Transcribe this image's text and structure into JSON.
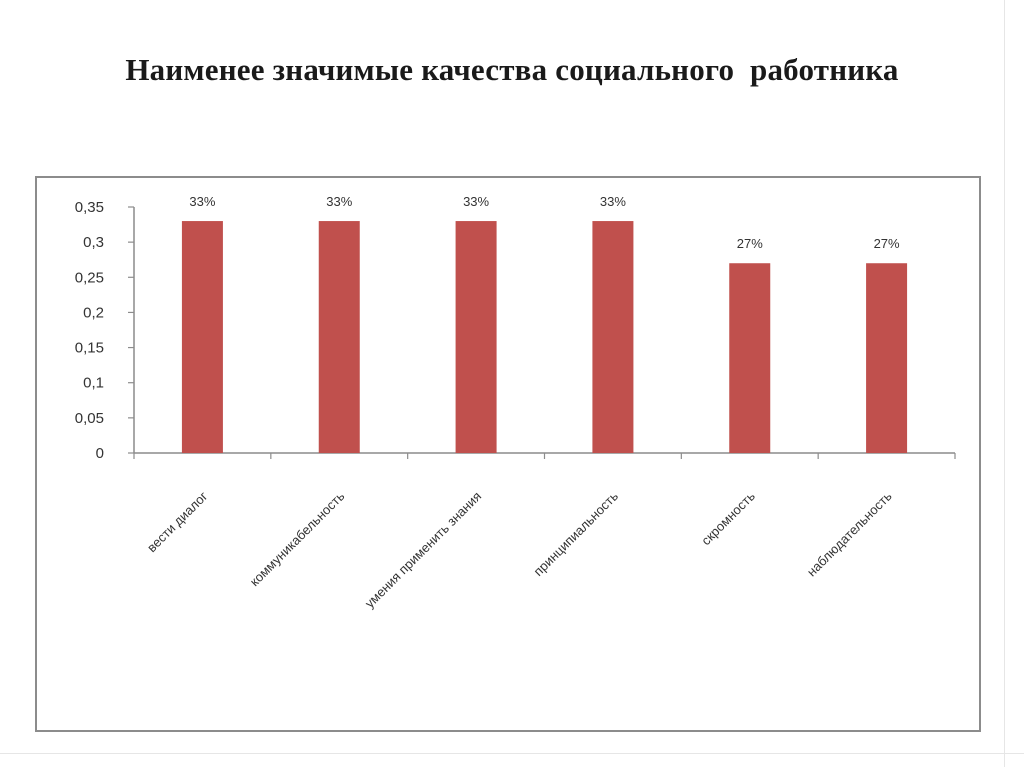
{
  "chart_data": {
    "type": "bar",
    "title": "Наименее значимые качества социального  работника",
    "categories": [
      "вести диалог",
      "коммуникабельность",
      "умения применить знания",
      "принципиальность",
      "скромность",
      "наблюдательность"
    ],
    "values": [
      0.33,
      0.33,
      0.33,
      0.33,
      0.27,
      0.27
    ],
    "data_labels": [
      "33%",
      "33%",
      "33%",
      "33%",
      "27%",
      "27%"
    ],
    "y_ticks": [
      "0",
      "0,05",
      "0,1",
      "0,15",
      "0,2",
      "0,25",
      "0,3",
      "0,35"
    ],
    "ylim": [
      0,
      0.35
    ],
    "xlabel": "",
    "ylabel": "",
    "grid": false,
    "legend": "none",
    "bar_color": "#c0504d"
  }
}
